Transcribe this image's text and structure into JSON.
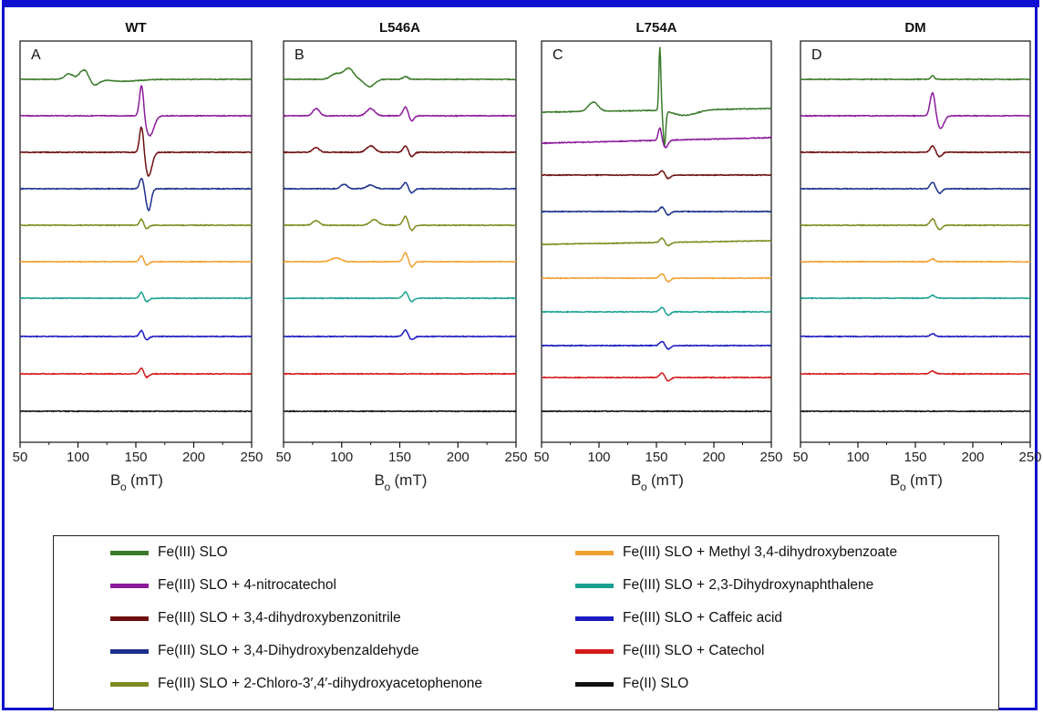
{
  "chart_data": {
    "type": "line",
    "xlabel": "Bₒ (mT)",
    "xlabel_main": "B",
    "xlabel_sub": "o",
    "xlabel_unit": "(mT)",
    "xlim": [
      50,
      250
    ],
    "xticks": [
      50,
      100,
      150,
      200,
      250
    ],
    "grid": false,
    "legend_placement": "bottom",
    "panels": [
      {
        "title": "WT",
        "letter": "A"
      },
      {
        "title": "L546A",
        "letter": "B"
      },
      {
        "title": "L754A",
        "letter": "C"
      },
      {
        "title": "DM",
        "letter": "D"
      }
    ],
    "series": [
      {
        "name": "Fe(III) SLO",
        "color": "#3b7a2a"
      },
      {
        "name": "Fe(III) SLO + 4-nitrocatechol",
        "color": "#8b1a9a"
      },
      {
        "name": "Fe(III) SLO + 3,4-dihydroxybenzonitrile",
        "color": "#6e0e0e"
      },
      {
        "name": "Fe(III) SLO + 3,4-Dihydroxybenzaldehyde",
        "color": "#1b2f8a"
      },
      {
        "name": "Fe(III) SLO + 2-Chloro-3′,4′-dihydroxyacetophenone",
        "color": "#7f8a1e"
      },
      {
        "name": "Fe(III) SLO + Methyl 3,4-dihydroxybenzoate",
        "color": "#f0a030"
      },
      {
        "name": "Fe(III) SLO + 2,3-Dihydroxynaphthalene",
        "color": "#1aa090"
      },
      {
        "name": "Fe(III) SLO + Caffeic acid",
        "color": "#1a1ac0"
      },
      {
        "name": "Fe(III) SLO + Catechol",
        "color": "#d41a1a"
      },
      {
        "name": "Fe(II) SLO",
        "color": "#111111"
      }
    ]
  },
  "legend": {
    "left": [
      "Fe(III) SLO",
      "Fe(III) SLO + 4-nitrocatechol",
      "Fe(III) SLO + 3,4-dihydroxybenzonitrile",
      "Fe(III) SLO + 3,4-Dihydroxybenzaldehyde",
      "Fe(III) SLO + 2-Chloro-3′,4′-dihydroxyacetophenone"
    ],
    "right": [
      "Fe(III) SLO + Methyl 3,4-dihydroxybenzoate",
      "Fe(III) SLO + 2,3-Dihydroxynaphthalene",
      "Fe(III) SLO + Caffeic acid",
      "Fe(III) SLO + Catechol",
      "Fe(II) SLO"
    ]
  }
}
